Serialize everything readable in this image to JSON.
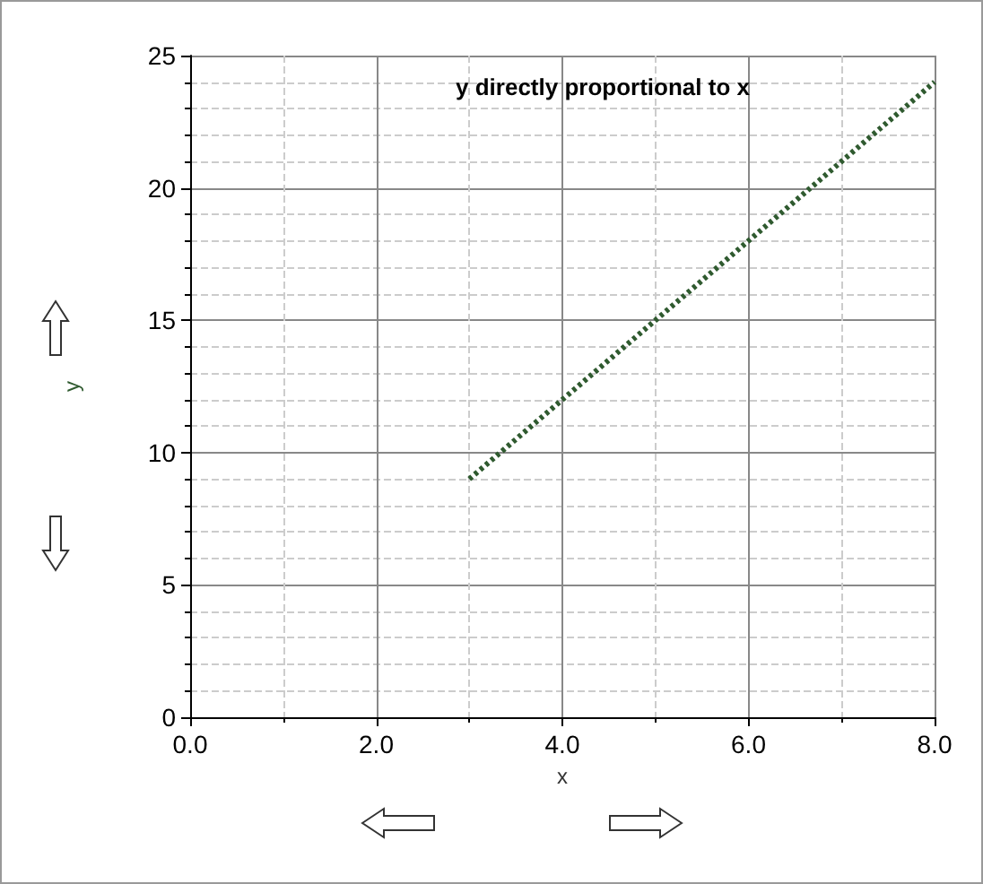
{
  "chart_data": {
    "type": "line",
    "title": "y directly proportional to x",
    "xlabel": "x",
    "ylabel": "y",
    "x": [
      3,
      8
    ],
    "series": [
      {
        "color": "#2f5a2f",
        "values": [
          9,
          24
        ]
      }
    ],
    "xlim": [
      0,
      8
    ],
    "xticks": [
      {
        "value": 0,
        "label": "0.0"
      },
      {
        "value": 2,
        "label": "2.0"
      },
      {
        "value": 4,
        "label": "4.0"
      },
      {
        "value": 6,
        "label": "6.0"
      },
      {
        "value": 8,
        "label": "8.0"
      }
    ],
    "ylim": [
      0,
      25
    ],
    "yticks": [
      0,
      5,
      10,
      15,
      20,
      25
    ],
    "grid": true,
    "marker": "none",
    "line_style": "dotted"
  }
}
